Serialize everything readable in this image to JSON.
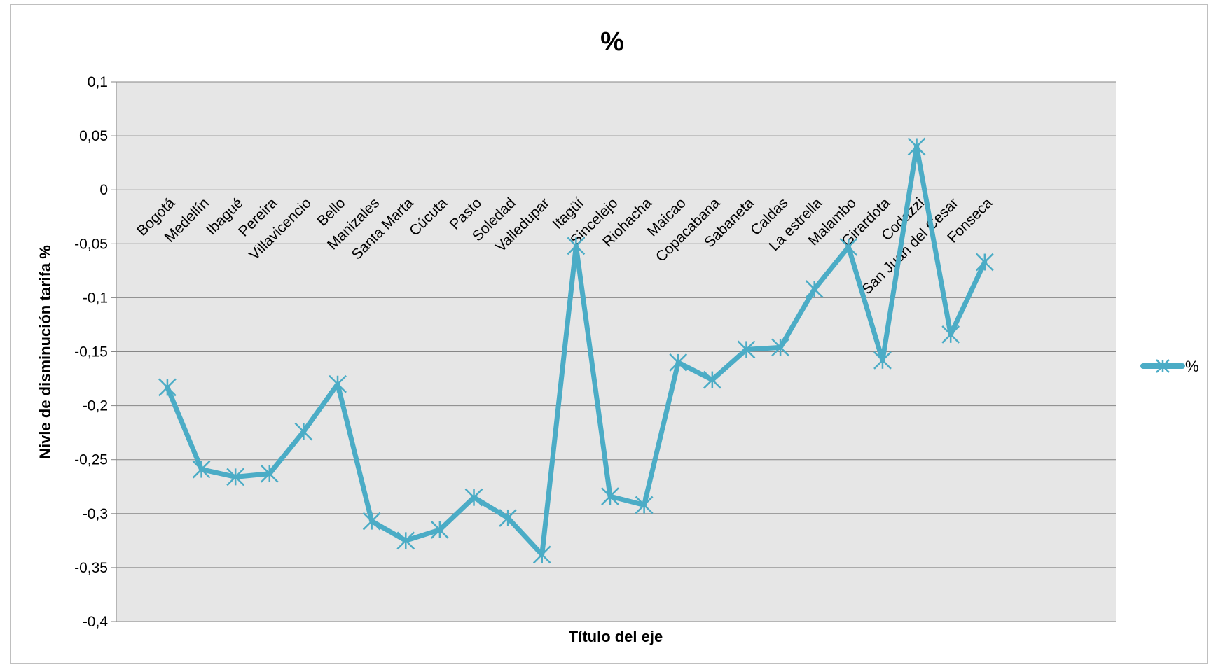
{
  "chart_data": {
    "type": "line",
    "title": "%",
    "xlabel": "Título del eje",
    "ylabel": "Nivle de disminución tarifa %",
    "ylim": [
      -0.4,
      0.1
    ],
    "y_ticks": [
      {
        "value": 0.1,
        "label": "0,1"
      },
      {
        "value": 0.05,
        "label": "0,05"
      },
      {
        "value": 0,
        "label": "0"
      },
      {
        "value": -0.05,
        "label": "-0,05"
      },
      {
        "value": -0.1,
        "label": "-0,1"
      },
      {
        "value": -0.15,
        "label": "-0,15"
      },
      {
        "value": -0.2,
        "label": "-0,2"
      },
      {
        "value": -0.25,
        "label": "-0,25"
      },
      {
        "value": -0.3,
        "label": "-0,3"
      },
      {
        "value": -0.35,
        "label": "-0,35"
      },
      {
        "value": -0.4,
        "label": "-0,4"
      }
    ],
    "grid": true,
    "legend_position": "right",
    "categories": [
      "Bogotá",
      "Medellín",
      "Ibagué",
      "Pereira",
      "Villavicencio",
      "Bello",
      "Manizales",
      "Santa Marta",
      "Cúcuta",
      "Pasto",
      "Soledad",
      "Valledupar",
      "Itagüí",
      "Sincelejo",
      "Riohacha",
      "Maicao",
      "Copacabana",
      "Sabaneta",
      "Caldas",
      "La estrella",
      "Malambo",
      "Girardota",
      "Codazzi",
      "San Juan del Cesar",
      "Fonseca"
    ],
    "series": [
      {
        "name": "%",
        "color": "#4bacc6",
        "marker": "star",
        "values": [
          -0.183,
          -0.259,
          -0.266,
          -0.263,
          -0.224,
          -0.18,
          -0.307,
          -0.325,
          -0.315,
          -0.285,
          -0.304,
          -0.338,
          -0.052,
          -0.284,
          -0.292,
          -0.16,
          -0.176,
          -0.148,
          -0.146,
          -0.092,
          -0.053,
          -0.158,
          0.04,
          -0.134,
          -0.067
        ]
      }
    ]
  }
}
